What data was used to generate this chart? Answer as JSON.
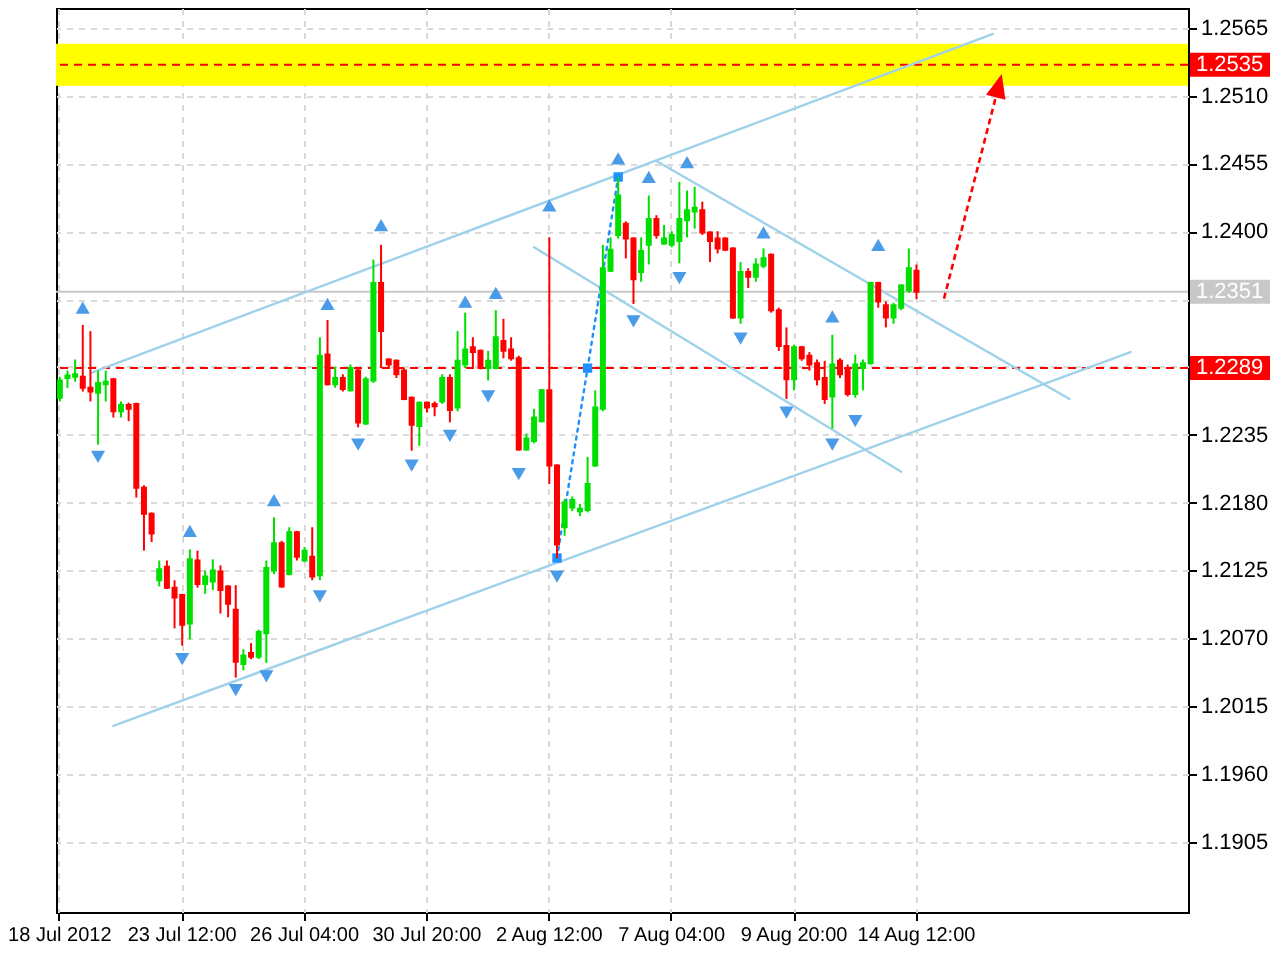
{
  "chart_data": {
    "type": "candlestick",
    "categories": [
      "18 Jul 2012",
      null,
      null,
      null,
      null,
      null,
      null,
      null,
      null,
      null,
      null,
      null,
      null,
      null,
      null,
      null,
      "23 Jul 12:00",
      null,
      null,
      null,
      null,
      null,
      null,
      null,
      null,
      null,
      null,
      null,
      null,
      null,
      null,
      null,
      "26 Jul 04:00",
      null,
      null,
      null,
      null,
      null,
      null,
      null,
      null,
      null,
      null,
      null,
      null,
      null,
      null,
      null,
      "30 Jul 20:00",
      null,
      null,
      null,
      null,
      null,
      null,
      null,
      null,
      null,
      null,
      null,
      null,
      null,
      null,
      null,
      "2 Aug 12:00",
      null,
      null,
      null,
      null,
      null,
      null,
      null,
      null,
      null,
      null,
      null,
      null,
      null,
      null,
      null,
      "7 Aug 04:00",
      null,
      null,
      null,
      null,
      null,
      null,
      null,
      null,
      null,
      null,
      null,
      null,
      null,
      null,
      null,
      "9 Aug 20:00",
      null,
      null,
      null,
      null,
      null,
      null,
      null,
      null,
      null,
      null,
      null,
      null,
      null,
      null,
      null,
      "14 Aug 12:00",
      null,
      null,
      null,
      null,
      null,
      null,
      null,
      null,
      null,
      null,
      null,
      null,
      null,
      null,
      null,
      null,
      null,
      null,
      null,
      null,
      null,
      null,
      null,
      null,
      null,
      null,
      null,
      null,
      null,
      null,
      null,
      null,
      null,
      null,
      null
    ],
    "ohlc": [
      [
        1.2265,
        1.2282,
        1.2262,
        1.2279
      ],
      [
        1.2281,
        1.2287,
        1.2273,
        1.2283
      ],
      [
        1.2282,
        1.2296,
        1.2278,
        1.2284
      ],
      [
        1.2282,
        1.2324,
        1.227,
        1.2273
      ],
      [
        1.2273,
        1.2319,
        1.2262,
        1.227
      ],
      [
        1.2269,
        1.2287,
        1.2227,
        1.2277
      ],
      [
        1.2276,
        1.2287,
        1.2262,
        1.2278
      ],
      [
        1.228,
        1.2281,
        1.2249,
        1.2254
      ],
      [
        1.2254,
        1.2262,
        1.2249,
        1.2259
      ],
      [
        1.2259,
        1.2261,
        1.2246,
        1.2256
      ],
      [
        1.226,
        1.2261,
        1.2184,
        1.2192
      ],
      [
        1.2192,
        1.2194,
        1.2141,
        1.2171
      ],
      [
        1.2171,
        1.2172,
        1.2148,
        1.2155
      ],
      [
        1.2117,
        1.2133,
        1.2112,
        1.2126
      ],
      [
        1.2128,
        1.2133,
        1.211,
        1.2111
      ],
      [
        1.2111,
        1.2117,
        1.2078,
        1.2103
      ],
      [
        1.2105,
        1.2106,
        1.2064,
        1.2081
      ],
      [
        1.2082,
        1.2142,
        1.2069,
        1.2134
      ],
      [
        1.2133,
        1.2141,
        1.2111,
        1.2114
      ],
      [
        1.2114,
        1.2125,
        1.2106,
        1.212
      ],
      [
        1.2116,
        1.2134,
        1.2109,
        1.2125
      ],
      [
        1.2124,
        1.2129,
        1.209,
        1.2109
      ],
      [
        1.2112,
        1.2113,
        1.2087,
        1.2098
      ],
      [
        1.2093,
        1.2113,
        1.2038,
        1.2051
      ],
      [
        1.2049,
        1.2061,
        1.2044,
        1.2056
      ],
      [
        1.2058,
        1.2066,
        1.2053,
        1.2055
      ],
      [
        1.2055,
        1.2077,
        1.2053,
        1.2075
      ],
      [
        1.2074,
        1.2133,
        1.205,
        1.2127
      ],
      [
        1.2125,
        1.2168,
        1.2122,
        1.2147
      ],
      [
        1.2147,
        1.2149,
        1.2111,
        1.2112
      ],
      [
        1.2122,
        1.216,
        1.2121,
        1.2156
      ],
      [
        1.2156,
        1.2157,
        1.2133,
        1.2136
      ],
      [
        1.2133,
        1.2144,
        1.2132,
        1.2141
      ],
      [
        1.2136,
        1.216,
        1.2117,
        1.212
      ],
      [
        1.2121,
        1.2314,
        1.2117,
        1.2299
      ],
      [
        1.23,
        1.2328,
        1.2275,
        1.2276
      ],
      [
        1.2276,
        1.229,
        1.2273,
        1.2281
      ],
      [
        1.2281,
        1.2284,
        1.227,
        1.2272
      ],
      [
        1.2271,
        1.2292,
        1.227,
        1.2289
      ],
      [
        1.2287,
        1.2289,
        1.2241,
        1.2245
      ],
      [
        1.2244,
        1.2282,
        1.2243,
        1.228
      ],
      [
        1.2279,
        1.2377,
        1.2277,
        1.2358
      ],
      [
        1.2358,
        1.2389,
        1.2289,
        1.2319
      ],
      [
        1.2296,
        1.2297,
        1.2289,
        1.2292
      ],
      [
        1.2295,
        1.2296,
        1.2281,
        1.2284
      ],
      [
        1.2287,
        1.2289,
        1.2263,
        1.2264
      ],
      [
        1.2265,
        1.2266,
        1.2222,
        1.2243
      ],
      [
        1.2242,
        1.2262,
        1.2226,
        1.2261
      ],
      [
        1.2261,
        1.2262,
        1.2253,
        1.2257
      ],
      [
        1.226,
        1.2262,
        1.225,
        1.2258
      ],
      [
        1.2262,
        1.2284,
        1.226,
        1.2281
      ],
      [
        1.2281,
        1.2284,
        1.2245,
        1.2255
      ],
      [
        1.2257,
        1.2319,
        1.2254,
        1.2295
      ],
      [
        1.2292,
        1.2334,
        1.2289,
        1.2304
      ],
      [
        1.2306,
        1.2314,
        1.2289,
        1.2302
      ],
      [
        1.2303,
        1.2304,
        1.2288,
        1.2289
      ],
      [
        1.2289,
        1.2303,
        1.2279,
        1.2295
      ],
      [
        1.2289,
        1.2336,
        1.2288,
        1.2314
      ],
      [
        1.2311,
        1.2329,
        1.2297,
        1.2303
      ],
      [
        1.2304,
        1.2314,
        1.2295,
        1.2297
      ],
      [
        1.2297,
        1.2299,
        1.2222,
        1.2223
      ],
      [
        1.2223,
        1.2236,
        1.2222,
        1.2232
      ],
      [
        1.223,
        1.2256,
        1.2228,
        1.2249
      ],
      [
        1.2246,
        1.2272,
        1.2245,
        1.2271
      ],
      [
        1.2271,
        1.2395,
        1.2195,
        1.221
      ],
      [
        1.221,
        1.2211,
        1.2135,
        1.2146
      ],
      [
        1.216,
        1.2183,
        1.2153,
        1.218
      ],
      [
        1.2176,
        1.2185,
        1.2173,
        1.2182
      ],
      [
        1.2173,
        1.2179,
        1.2169,
        1.2175
      ],
      [
        1.2174,
        1.2217,
        1.2172,
        1.2195
      ],
      [
        1.221,
        1.2271,
        1.2209,
        1.2257
      ],
      [
        1.2256,
        1.2389,
        1.2254,
        1.237
      ],
      [
        1.2368,
        1.2395,
        1.2367,
        1.2385
      ],
      [
        1.2397,
        1.2444,
        1.2394,
        1.2429
      ],
      [
        1.2406,
        1.2408,
        1.2378,
        1.2394
      ],
      [
        1.2394,
        1.2395,
        1.2341,
        1.2361
      ],
      [
        1.2367,
        1.2395,
        1.2359,
        1.2384
      ],
      [
        1.2389,
        1.2429,
        1.2373,
        1.241
      ],
      [
        1.241,
        1.2413,
        1.2394,
        1.2397
      ],
      [
        1.239,
        1.2405,
        1.2389,
        1.2394
      ],
      [
        1.2389,
        1.24,
        1.2387,
        1.2397
      ],
      [
        1.2392,
        1.244,
        1.2374,
        1.241
      ],
      [
        1.2409,
        1.2433,
        1.2395,
        1.2417
      ],
      [
        1.2416,
        1.2436,
        1.2402,
        1.2419
      ],
      [
        1.2417,
        1.2424,
        1.2397,
        1.2399
      ],
      [
        1.2399,
        1.24,
        1.2375,
        1.2392
      ],
      [
        1.2394,
        1.24,
        1.2382,
        1.2386
      ],
      [
        1.2394,
        1.2395,
        1.2384,
        1.2385
      ],
      [
        1.2386,
        1.2387,
        1.2329,
        1.233
      ],
      [
        1.233,
        1.2375,
        1.2325,
        1.2367
      ],
      [
        1.2367,
        1.237,
        1.2354,
        1.2363
      ],
      [
        1.2363,
        1.2378,
        1.2359,
        1.2373
      ],
      [
        1.2372,
        1.2386,
        1.237,
        1.2378
      ],
      [
        1.2381,
        1.2382,
        1.2334,
        1.2336
      ],
      [
        1.2336,
        1.2338,
        1.2303,
        1.2307
      ],
      [
        1.2307,
        1.2322,
        1.2264,
        1.228
      ],
      [
        1.228,
        1.2308,
        1.2271,
        1.2306
      ],
      [
        1.2306,
        1.2307,
        1.2295,
        1.2297
      ],
      [
        1.2299,
        1.2302,
        1.2287,
        1.2292
      ],
      [
        1.2293,
        1.2296,
        1.2275,
        1.228
      ],
      [
        1.2281,
        1.2295,
        1.226,
        1.2264
      ],
      [
        1.2266,
        1.2316,
        1.224,
        1.2292
      ],
      [
        1.2295,
        1.2297,
        1.2281,
        1.2284
      ],
      [
        1.2289,
        1.2292,
        1.2266,
        1.2268
      ],
      [
        1.2268,
        1.23,
        1.2265,
        1.2292
      ],
      [
        1.2289,
        1.2296,
        1.2271,
        1.2293
      ],
      [
        1.2293,
        1.2359,
        1.2292,
        1.2358
      ],
      [
        1.2358,
        1.2359,
        1.2338,
        1.2343
      ],
      [
        1.234,
        1.2343,
        1.2322,
        1.233
      ],
      [
        1.233,
        1.2342,
        1.2325,
        1.234
      ],
      [
        1.2338,
        1.2357,
        1.2336,
        1.2356
      ],
      [
        1.2352,
        1.2386,
        1.235,
        1.237
      ],
      [
        1.2368,
        1.2373,
        1.2345,
        1.2351
      ],
      null,
      null,
      null,
      null,
      null,
      null,
      null,
      null,
      null,
      null,
      null,
      null,
      null,
      null,
      null,
      null,
      null,
      null,
      null,
      null,
      null,
      null,
      null,
      null,
      null,
      null,
      null,
      null,
      null,
      null,
      null,
      null,
      null,
      null,
      null
    ],
    "colors": [
      "#00e000",
      "#00e000",
      "#00e000",
      "#ff0000",
      "#ff0000",
      "#00e000",
      "#00e000",
      "#ff0000",
      "#00e000",
      "#ff0000",
      "#ff0000",
      "#ff0000",
      "#ff0000",
      "#00e000",
      "#ff0000",
      "#ff0000",
      "#ff0000",
      "#00e000",
      "#ff0000",
      "#00e000",
      "#00e000",
      "#ff0000",
      "#ff0000",
      "#ff0000",
      "#00e000",
      "#ff0000",
      "#00e000",
      "#00e000",
      "#00e000",
      "#ff0000",
      "#00e000",
      "#ff0000",
      "#00e000",
      "#ff0000",
      "#00e000",
      "#ff0000",
      "#00e000",
      "#ff0000",
      "#00e000",
      "#ff0000",
      "#00e000",
      "#00e000",
      "#ff0000",
      "#ff0000",
      "#ff0000",
      "#ff0000",
      "#ff0000",
      "#00e000",
      "#ff0000",
      "#ff0000",
      "#00e000",
      "#ff0000",
      "#00e000",
      "#00e000",
      "#ff0000",
      "#ff0000",
      "#00e000",
      "#00e000",
      "#ff0000",
      "#ff0000",
      "#ff0000",
      "#00e000",
      "#00e000",
      "#00e000",
      "#ff0000",
      "#ff0000",
      "#00e000",
      "#00e000",
      "#00e000",
      "#00e000",
      "#00e000",
      "#00e000",
      "#00e000",
      "#00e000",
      "#ff0000",
      "#ff0000",
      "#00e000",
      "#00e000",
      "#ff0000",
      "#00e000",
      "#00e000",
      "#00e000",
      "#00e000",
      "#00e000",
      "#ff0000",
      "#ff0000",
      "#ff0000",
      "#ff0000",
      "#ff0000",
      "#00e000",
      "#ff0000",
      "#00e000",
      "#00e000",
      "#ff0000",
      "#ff0000",
      "#ff0000",
      "#00e000",
      "#ff0000",
      "#ff0000",
      "#ff0000",
      "#ff0000",
      "#00e000",
      "#ff0000",
      "#ff0000",
      "#00e000",
      "#00e000",
      "#00e000",
      "#ff0000",
      "#ff0000",
      "#00e000",
      "#00e000",
      "#00e000",
      "#ff0000",
      null,
      null,
      null,
      null,
      null,
      null,
      null,
      null,
      null,
      null,
      null,
      null,
      null,
      null,
      null,
      null,
      null,
      null,
      null,
      null,
      null,
      null,
      null,
      null,
      null,
      null,
      null,
      null,
      null,
      null,
      null,
      null,
      null,
      null,
      null
    ],
    "series": [
      {
        "type": "line",
        "color": "#9fd2ea",
        "values": [
          null,
          null,
          null,
          null,
          1.2285,
          null,
          null,
          null,
          null,
          null,
          null,
          null,
          null,
          null,
          null,
          null,
          null,
          null,
          null,
          null,
          null,
          null,
          null,
          null,
          null,
          null,
          null,
          null,
          null,
          null,
          null,
          null,
          null,
          null,
          null,
          null,
          null,
          null,
          null,
          null,
          null,
          null,
          null,
          null,
          null,
          null,
          null,
          null,
          null,
          null,
          null,
          null,
          null,
          null,
          null,
          null,
          null,
          null,
          null,
          null,
          null,
          null,
          null,
          null,
          null,
          null,
          null,
          null,
          null,
          null,
          null,
          null,
          null,
          null,
          null,
          null,
          null,
          null,
          null,
          null,
          null,
          null,
          null,
          null,
          null,
          null,
          null,
          null,
          null,
          null,
          null,
          null,
          null,
          null,
          null,
          null,
          null,
          null,
          null,
          null,
          null,
          null,
          null,
          null,
          null,
          null,
          null,
          null,
          null,
          null,
          null,
          null,
          null,
          null,
          null,
          null,
          null,
          null,
          null,
          null,
          null,
          null,
          1.256,
          null,
          null,
          null,
          null,
          null,
          null,
          null,
          null,
          null,
          null,
          null,
          null,
          null,
          null,
          null,
          null,
          null,
          null,
          null,
          null,
          null,
          null,
          null,
          null,
          null
        ]
      },
      {
        "type": "line",
        "color": "#9fd2ea",
        "values": [
          null,
          null,
          null,
          null,
          null,
          null,
          null,
          1.1999,
          null,
          null,
          null,
          null,
          null,
          null,
          null,
          null,
          null,
          null,
          null,
          null,
          null,
          null,
          null,
          null,
          null,
          null,
          null,
          null,
          null,
          null,
          null,
          null,
          null,
          null,
          null,
          null,
          null,
          null,
          null,
          null,
          null,
          null,
          null,
          null,
          null,
          null,
          null,
          null,
          null,
          null,
          null,
          null,
          null,
          null,
          null,
          null,
          null,
          null,
          null,
          null,
          null,
          null,
          null,
          null,
          null,
          null,
          null,
          null,
          null,
          null,
          null,
          null,
          null,
          null,
          null,
          null,
          null,
          null,
          null,
          null,
          null,
          null,
          null,
          null,
          null,
          null,
          null,
          null,
          null,
          null,
          null,
          null,
          null,
          null,
          null,
          null,
          null,
          null,
          null,
          null,
          null,
          null,
          null,
          null,
          null,
          null,
          null,
          null,
          null,
          null,
          null,
          null,
          null,
          null,
          null,
          null,
          null,
          null,
          null,
          null,
          null,
          null,
          null,
          null,
          null,
          null,
          null,
          null,
          null,
          null,
          null,
          null,
          null,
          null,
          null,
          null,
          null,
          null,
          null,
          null,
          1.2302,
          null,
          null,
          null,
          null,
          null,
          null,
          null
        ]
      },
      {
        "type": "line",
        "color": "#9fd2ea",
        "values": [
          null,
          null,
          null,
          null,
          null,
          null,
          null,
          null,
          null,
          null,
          null,
          null,
          null,
          null,
          null,
          null,
          null,
          null,
          null,
          null,
          null,
          null,
          null,
          null,
          null,
          null,
          null,
          null,
          null,
          null,
          null,
          null,
          null,
          null,
          null,
          null,
          null,
          null,
          null,
          null,
          null,
          null,
          null,
          null,
          null,
          null,
          null,
          null,
          null,
          null,
          null,
          null,
          null,
          null,
          null,
          null,
          null,
          null,
          null,
          null,
          null,
          null,
          null,
          null,
          null,
          null,
          null,
          null,
          null,
          null,
          null,
          null,
          null,
          null,
          null,
          null,
          null,
          null,
          1.2457,
          null,
          null,
          null,
          null,
          null,
          null,
          null,
          null,
          null,
          null,
          null,
          null,
          null,
          null,
          null,
          null,
          null,
          null,
          null,
          null,
          null,
          null,
          null,
          null,
          null,
          null,
          null,
          null,
          null,
          null,
          null,
          null,
          null,
          null,
          null,
          null,
          null,
          null,
          null,
          null,
          null,
          null,
          null,
          null,
          null,
          null,
          null,
          null,
          null,
          null,
          null,
          null,
          null,
          1.2264,
          null,
          null,
          null,
          null,
          null,
          null,
          null,
          null,
          null,
          null,
          null,
          null,
          null,
          null,
          null
        ]
      },
      {
        "type": "line",
        "color": "#9fd2ea",
        "values": [
          null,
          null,
          null,
          null,
          null,
          null,
          null,
          null,
          null,
          null,
          null,
          null,
          null,
          null,
          null,
          null,
          null,
          null,
          null,
          null,
          null,
          null,
          null,
          null,
          null,
          null,
          null,
          null,
          null,
          null,
          null,
          null,
          null,
          null,
          null,
          null,
          null,
          null,
          null,
          null,
          null,
          null,
          null,
          null,
          null,
          null,
          null,
          null,
          null,
          null,
          null,
          null,
          null,
          null,
          null,
          null,
          null,
          null,
          null,
          null,
          null,
          null,
          1.2387,
          null,
          null,
          null,
          null,
          null,
          null,
          null,
          null,
          null,
          null,
          null,
          null,
          null,
          null,
          null,
          null,
          null,
          null,
          null,
          null,
          null,
          null,
          null,
          null,
          null,
          null,
          null,
          null,
          null,
          null,
          null,
          null,
          null,
          null,
          null,
          null,
          null,
          null,
          null,
          null,
          null,
          null,
          null,
          null,
          null,
          null,
          null,
          1.2205,
          null,
          null,
          null,
          null,
          null,
          null,
          null,
          null,
          null,
          null,
          null,
          null,
          null,
          null,
          null,
          null,
          null,
          null,
          null,
          null,
          null,
          null,
          null,
          null,
          null,
          null,
          null,
          null,
          null,
          null,
          null,
          null,
          null,
          null,
          null,
          null,
          null
        ]
      },
      {
        "type": "line",
        "color": "#1e90ff",
        "line_style": "dotted",
        "marker": "square",
        "values": [
          null,
          null,
          null,
          null,
          null,
          null,
          null,
          null,
          null,
          null,
          null,
          null,
          null,
          null,
          null,
          null,
          null,
          null,
          null,
          null,
          null,
          null,
          null,
          null,
          null,
          null,
          null,
          null,
          null,
          null,
          null,
          null,
          null,
          null,
          null,
          null,
          null,
          null,
          null,
          null,
          null,
          null,
          null,
          null,
          null,
          null,
          null,
          null,
          null,
          null,
          null,
          null,
          null,
          null,
          null,
          null,
          null,
          null,
          null,
          null,
          null,
          null,
          null,
          null,
          null,
          1.2135,
          null,
          null,
          null,
          1.2289,
          null,
          null,
          null,
          1.2444,
          null,
          null,
          null,
          null,
          null,
          null,
          null,
          null,
          null,
          null,
          null,
          null,
          null,
          null,
          null,
          null,
          null,
          null,
          null,
          null,
          null,
          null,
          null,
          null,
          null,
          null,
          null,
          null,
          null,
          null,
          null,
          null,
          null,
          null,
          null,
          null,
          null,
          null,
          null,
          null,
          null,
          null,
          null,
          null,
          null,
          null,
          null,
          null,
          null,
          null,
          null,
          null,
          null,
          null,
          null,
          null,
          null,
          null,
          null,
          null,
          null,
          null,
          null,
          null,
          null,
          null,
          null,
          null,
          null,
          null,
          null,
          null,
          null,
          null
        ]
      },
      {
        "type": "scatter",
        "color": "#4a9be8",
        "marker": "triangle",
        "values": [
          null,
          null,
          null,
          1.2338,
          null,
          null,
          null,
          null,
          null,
          null,
          null,
          null,
          null,
          null,
          null,
          null,
          null,
          1.2157,
          null,
          null,
          null,
          null,
          null,
          null,
          null,
          null,
          null,
          null,
          1.2182,
          null,
          null,
          null,
          null,
          null,
          null,
          1.2341,
          null,
          null,
          null,
          null,
          null,
          null,
          1.2405,
          null,
          null,
          null,
          null,
          null,
          null,
          null,
          null,
          null,
          null,
          1.2343,
          null,
          null,
          null,
          1.235,
          null,
          null,
          null,
          null,
          null,
          null,
          1.2421,
          null,
          null,
          null,
          null,
          null,
          null,
          null,
          null,
          1.2459,
          null,
          null,
          null,
          1.2444,
          null,
          null,
          null,
          null,
          1.2456,
          null,
          null,
          null,
          null,
          null,
          null,
          null,
          null,
          null,
          1.2399,
          null,
          null,
          null,
          null,
          null,
          null,
          null,
          null,
          1.2331,
          null,
          null,
          null,
          null,
          null,
          1.2389,
          null,
          null,
          null,
          null,
          null,
          null,
          null,
          null,
          null,
          null,
          null,
          null,
          null,
          null,
          null,
          null,
          null,
          null,
          null,
          null,
          null,
          null,
          null,
          null,
          null,
          null,
          null,
          null,
          null,
          null,
          null,
          null,
          null,
          null,
          null,
          null,
          null,
          null,
          null,
          null
        ]
      },
      {
        "type": "scatter",
        "color": "#4a9be8",
        "marker": "triangle",
        "values": [
          null,
          null,
          null,
          null,
          null,
          1.2217,
          null,
          null,
          null,
          null,
          null,
          null,
          null,
          null,
          null,
          null,
          1.2053,
          null,
          null,
          null,
          null,
          null,
          null,
          1.2028,
          null,
          null,
          null,
          1.2039,
          null,
          null,
          null,
          null,
          null,
          null,
          1.2104,
          null,
          null,
          null,
          null,
          1.2227,
          null,
          null,
          null,
          null,
          null,
          null,
          1.221,
          null,
          null,
          null,
          null,
          1.2234,
          null,
          null,
          null,
          null,
          1.2266,
          null,
          null,
          null,
          1.2203,
          null,
          null,
          null,
          null,
          1.212,
          null,
          null,
          null,
          null,
          null,
          null,
          null,
          null,
          null,
          1.2327,
          null,
          null,
          null,
          null,
          null,
          1.2362,
          null,
          null,
          null,
          null,
          null,
          null,
          null,
          1.2313,
          null,
          null,
          null,
          null,
          null,
          1.2253,
          null,
          null,
          null,
          null,
          null,
          1.2227,
          null,
          null,
          1.2246,
          null,
          null,
          null,
          null,
          null,
          null,
          null,
          null,
          null,
          null,
          null,
          null,
          null,
          null,
          null,
          null,
          null,
          null,
          null,
          null,
          null,
          null,
          null,
          null,
          null,
          null,
          null,
          null,
          null,
          null,
          null,
          null,
          null,
          null,
          null,
          null,
          null,
          null,
          null,
          null,
          null,
          null,
          null
        ]
      }
    ],
    "ref_lines": [
      {
        "axis": "y",
        "value": 1.2535,
        "label": "1.2535",
        "color": "#ff0000",
        "line_style": "dashed"
      },
      {
        "axis": "y",
        "value": 1.2289,
        "label": "1.2289",
        "color": "#ff0000",
        "line_style": "dashed"
      },
      {
        "axis": "y",
        "value": 1.2351,
        "label": "1.2351",
        "color": "#c8c8c8"
      }
    ],
    "bands": [
      {
        "axis": "y",
        "from": 1.2518,
        "to": 1.2552,
        "color": "#ffff00"
      }
    ],
    "ylim": [
      1.1848,
      1.2581
    ],
    "yticks": [
      1.2565,
      {
        "value": 1.251,
        "label": "1.2510"
      },
      1.2455,
      {
        "value": 1.24,
        "label": "1.2400"
      },
      {
        "value": 1.2345,
        "label": null
      },
      {
        "value": 1.229,
        "label": null
      },
      1.2235,
      {
        "value": 1.218,
        "label": "1.2180"
      },
      1.2125,
      {
        "value": 1.207,
        "label": "1.2070"
      },
      1.2015,
      {
        "value": 1.196,
        "label": "1.1960"
      },
      1.1905
    ],
    "grid": true
  }
}
